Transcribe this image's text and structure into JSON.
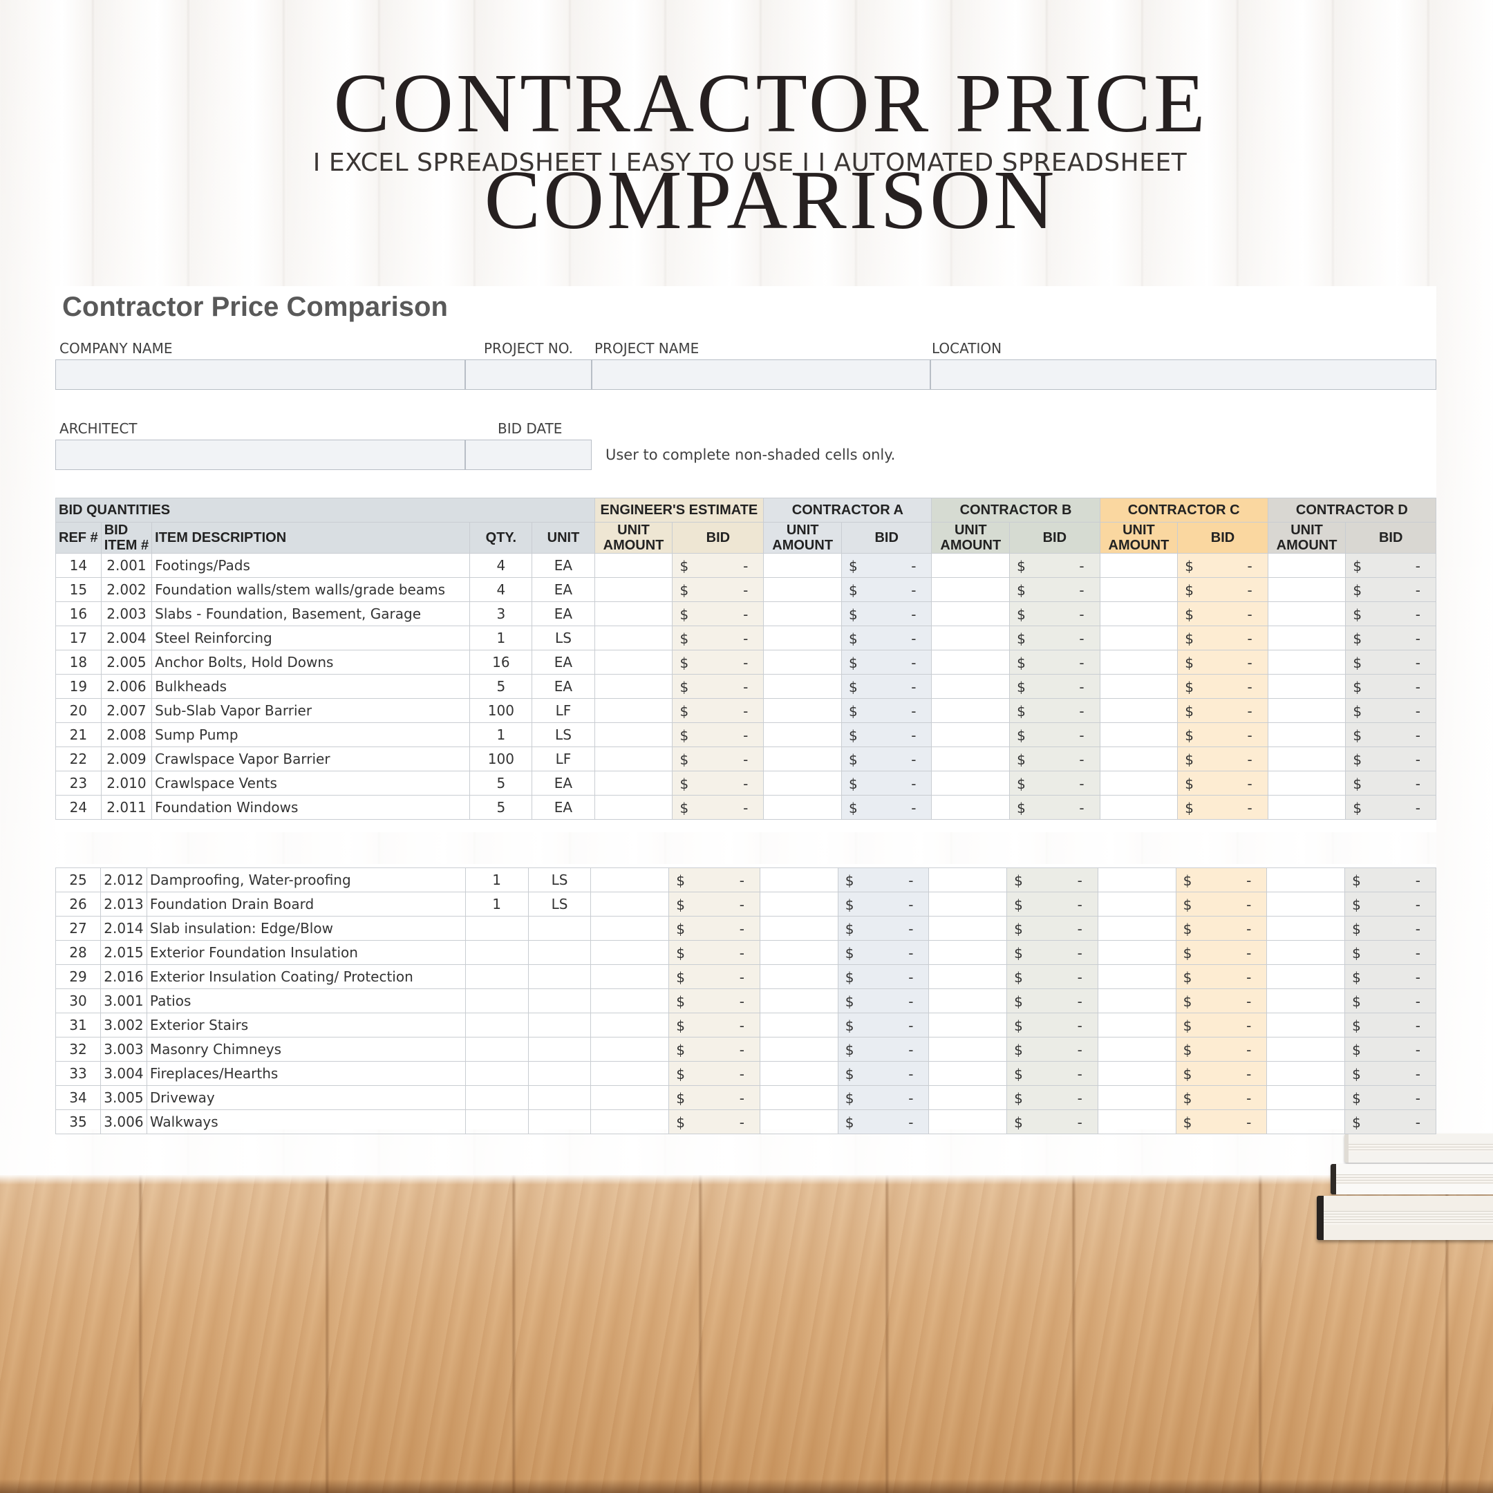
{
  "banner": {
    "title": "CONTRACTOR PRICE COMPARISON",
    "subtitle": "I EXCEL SPREADSHEET  I EASY TO USE I  I AUTOMATED SPREADSHEET"
  },
  "sheet": {
    "title": "Contractor Price Comparison",
    "labels": {
      "company_name": "COMPANY NAME",
      "project_no": "PROJECT NO.",
      "project_name": "PROJECT NAME",
      "location": "LOCATION",
      "architect": "ARCHITECT",
      "bid_date": "BID DATE"
    },
    "fields": {
      "company_name": "",
      "project_no": "",
      "project_name": "",
      "location": "",
      "architect": "",
      "bid_date": ""
    },
    "note": "User to complete non-shaded cells only."
  },
  "table": {
    "group_headers": {
      "bid_quantities": "BID QUANTITIES",
      "engineers_estimate": "ENGINEER'S ESTIMATE",
      "contractor_a": "CONTRACTOR A",
      "contractor_b": "CONTRACTOR B",
      "contractor_c": "CONTRACTOR C",
      "contractor_d": "CONTRACTOR D"
    },
    "columns": {
      "ref": "REF #",
      "bid_item_1": "BID",
      "bid_item_2": "ITEM #",
      "description": "ITEM DESCRIPTION",
      "qty": "QTY.",
      "unit": "UNIT",
      "unit_amount_1": "UNIT",
      "unit_amount_2": "AMOUNT",
      "bid": "BID"
    },
    "currency_symbol": "$",
    "empty_value": "-",
    "rows_part1": [
      {
        "ref": "14",
        "item": "2.001",
        "desc": "Footings/Pads",
        "qty": "4",
        "unit": "EA"
      },
      {
        "ref": "15",
        "item": "2.002",
        "desc": "Foundation walls/stem walls/grade beams",
        "qty": "4",
        "unit": "EA"
      },
      {
        "ref": "16",
        "item": "2.003",
        "desc": "Slabs - Foundation, Basement, Garage",
        "qty": "3",
        "unit": "EA"
      },
      {
        "ref": "17",
        "item": "2.004",
        "desc": "Steel Reinforcing",
        "qty": "1",
        "unit": "LS"
      },
      {
        "ref": "18",
        "item": "2.005",
        "desc": "Anchor Bolts, Hold Downs",
        "qty": "16",
        "unit": "EA"
      },
      {
        "ref": "19",
        "item": "2.006",
        "desc": "Bulkheads",
        "qty": "5",
        "unit": "EA"
      },
      {
        "ref": "20",
        "item": "2.007",
        "desc": "Sub-Slab Vapor Barrier",
        "qty": "100",
        "unit": "LF"
      },
      {
        "ref": "21",
        "item": "2.008",
        "desc": "Sump Pump",
        "qty": "1",
        "unit": "LS"
      },
      {
        "ref": "22",
        "item": "2.009",
        "desc": "Crawlspace Vapor Barrier",
        "qty": "100",
        "unit": "LF"
      },
      {
        "ref": "23",
        "item": "2.010",
        "desc": "Crawlspace Vents",
        "qty": "5",
        "unit": "EA"
      },
      {
        "ref": "24",
        "item": "2.011",
        "desc": "Foundation Windows",
        "qty": "5",
        "unit": "EA"
      }
    ],
    "rows_part2": [
      {
        "ref": "25",
        "item": "2.012",
        "desc": "Damproofing, Water-proofing",
        "qty": "1",
        "unit": "LS"
      },
      {
        "ref": "26",
        "item": "2.013",
        "desc": "Foundation Drain Board",
        "qty": "1",
        "unit": "LS"
      },
      {
        "ref": "27",
        "item": "2.014",
        "desc": "Slab insulation: Edge/Blow",
        "qty": "",
        "unit": ""
      },
      {
        "ref": "28",
        "item": "2.015",
        "desc": "Exterior Foundation Insulation",
        "qty": "",
        "unit": ""
      },
      {
        "ref": "29",
        "item": "2.016",
        "desc": "Exterior Insulation Coating/ Protection",
        "qty": "",
        "unit": ""
      },
      {
        "ref": "30",
        "item": "3.001",
        "desc": "Patios",
        "qty": "",
        "unit": ""
      },
      {
        "ref": "31",
        "item": "3.002",
        "desc": "Exterior Stairs",
        "qty": "",
        "unit": ""
      },
      {
        "ref": "32",
        "item": "3.003",
        "desc": "Masonry Chimneys",
        "qty": "",
        "unit": ""
      },
      {
        "ref": "33",
        "item": "3.004",
        "desc": "Fireplaces/Hearths",
        "qty": "",
        "unit": ""
      },
      {
        "ref": "34",
        "item": "3.005",
        "desc": "Driveway",
        "qty": "",
        "unit": ""
      },
      {
        "ref": "35",
        "item": "3.006",
        "desc": "Walkways",
        "qty": "",
        "unit": ""
      }
    ]
  },
  "colors": {
    "engineers_estimate_header": "#eee6d3",
    "contractor_a_header": "#dfe3e7",
    "contractor_b_header": "#d6dbd2",
    "contractor_c_header": "#fad7a0",
    "contractor_d_header": "#d9d7d2",
    "bid_quantities_header": "#d9dee2"
  },
  "icons": {
    "books": "books-stack-decoration"
  }
}
